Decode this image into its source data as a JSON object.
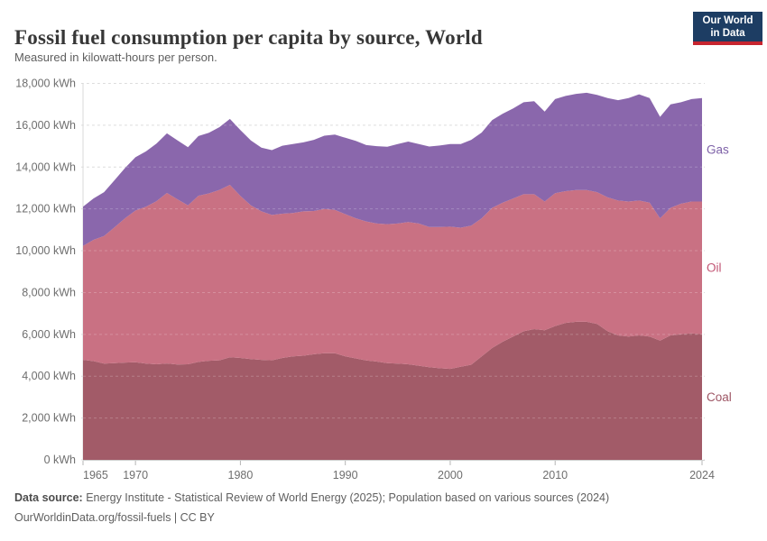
{
  "header": {
    "title": "Fossil fuel consumption per capita by source, World",
    "subtitle": "Measured in kilowatt-hours per person.",
    "logo": {
      "line1": "Our World",
      "line2": "in Data"
    }
  },
  "footer": {
    "source_label": "Data source:",
    "source_text": " Energy Institute - Statistical Review of World Energy (2025); Population based on various sources (2024)",
    "note": "OurWorldinData.org/fossil-fuels | CC BY"
  },
  "colors": {
    "coal_fill": "#a25b68",
    "oil_fill": "#c97183",
    "gas_fill": "#8a67ac",
    "coal_label": "#9d5564",
    "oil_label": "#c25574",
    "gas_label": "#7e62a8",
    "gridline": "#dcdcdc",
    "tick_text": "#6e6e6e",
    "logo_bg": "#1d3d63",
    "logo_accent": "#c7252f"
  },
  "chart_data": {
    "type": "area",
    "stacked": true,
    "title": "Fossil fuel consumption per capita by source, World",
    "xlabel": "",
    "ylabel": "kilowatt-hours per person",
    "unit": "kWh",
    "grid": "dashed",
    "legend_position": "right",
    "x_range": [
      1965,
      2024
    ],
    "ylim": [
      0,
      18000
    ],
    "ytick_step": 2000,
    "ytick_labels": [
      "0 kWh",
      "2,000 kWh",
      "4,000 kWh",
      "6,000 kWh",
      "8,000 kWh",
      "10,000 kWh",
      "12,000 kWh",
      "14,000 kWh",
      "16,000 kWh",
      "18,000 kWh"
    ],
    "xticks": [
      1965,
      1970,
      1980,
      1990,
      2000,
      2010,
      2024
    ],
    "years": [
      1965,
      1966,
      1967,
      1968,
      1969,
      1970,
      1971,
      1972,
      1973,
      1974,
      1975,
      1976,
      1977,
      1978,
      1979,
      1980,
      1981,
      1982,
      1983,
      1984,
      1985,
      1986,
      1987,
      1988,
      1989,
      1990,
      1991,
      1992,
      1993,
      1994,
      1995,
      1996,
      1997,
      1998,
      1999,
      2000,
      2001,
      2002,
      2003,
      2004,
      2005,
      2006,
      2007,
      2008,
      2009,
      2010,
      2011,
      2012,
      2013,
      2014,
      2015,
      2016,
      2017,
      2018,
      2019,
      2020,
      2021,
      2022,
      2023,
      2024
    ],
    "series": [
      {
        "name": "Coal",
        "values": [
          4780,
          4720,
          4600,
          4620,
          4650,
          4670,
          4600,
          4570,
          4610,
          4560,
          4570,
          4680,
          4740,
          4760,
          4900,
          4870,
          4820,
          4780,
          4760,
          4870,
          4950,
          4980,
          5050,
          5100,
          5100,
          4950,
          4850,
          4750,
          4700,
          4620,
          4600,
          4570,
          4500,
          4430,
          4380,
          4350,
          4450,
          4550,
          4950,
          5350,
          5650,
          5900,
          6150,
          6250,
          6200,
          6400,
          6550,
          6600,
          6600,
          6500,
          6150,
          5950,
          5900,
          5950,
          5900,
          5700,
          5950,
          6000,
          6050,
          6000
        ]
      },
      {
        "name": "Oil",
        "values": [
          5450,
          5800,
          6100,
          6500,
          6900,
          7250,
          7500,
          7800,
          8150,
          7900,
          7600,
          7950,
          8000,
          8150,
          8250,
          7750,
          7350,
          7100,
          6950,
          6900,
          6850,
          6900,
          6850,
          6900,
          6850,
          6800,
          6700,
          6650,
          6600,
          6650,
          6700,
          6800,
          6800,
          6700,
          6750,
          6800,
          6650,
          6650,
          6600,
          6700,
          6650,
          6600,
          6550,
          6450,
          6150,
          6350,
          6300,
          6300,
          6300,
          6300,
          6400,
          6450,
          6450,
          6450,
          6400,
          5850,
          6100,
          6250,
          6300,
          6350
        ]
      },
      {
        "name": "Gas",
        "values": [
          1870,
          1980,
          2100,
          2250,
          2400,
          2550,
          2650,
          2750,
          2850,
          2820,
          2780,
          2850,
          2900,
          3000,
          3150,
          3150,
          3100,
          3050,
          3100,
          3250,
          3300,
          3300,
          3400,
          3500,
          3600,
          3650,
          3700,
          3650,
          3700,
          3700,
          3800,
          3850,
          3800,
          3850,
          3900,
          3950,
          4000,
          4100,
          4100,
          4200,
          4250,
          4300,
          4400,
          4450,
          4300,
          4500,
          4550,
          4600,
          4650,
          4650,
          4750,
          4800,
          4950,
          5080,
          5000,
          4850,
          4950,
          4850,
          4900,
          4950
        ]
      }
    ]
  }
}
